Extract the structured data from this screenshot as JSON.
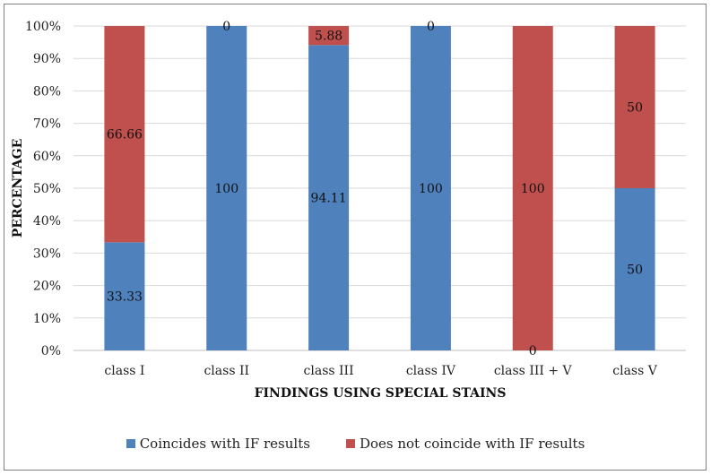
{
  "chart_data": {
    "type": "bar",
    "stacked": true,
    "normalized": true,
    "categories": [
      "class I",
      "class II",
      "class III",
      "class IV",
      "class III + V",
      "class V"
    ],
    "series": [
      {
        "name": "Coincides with IF results",
        "color": "#4f81bd",
        "values": [
          33.33,
          100,
          94.11,
          100,
          0,
          50
        ],
        "labels": [
          "33.33",
          "100",
          "94.11",
          "100",
          "0",
          "50"
        ]
      },
      {
        "name": "Does not coincide with IF results",
        "color": "#c0504d",
        "values": [
          66.66,
          0,
          5.88,
          0,
          100,
          50
        ],
        "labels": [
          "66.66",
          "0",
          "5.88",
          "0",
          "100",
          "50"
        ]
      }
    ],
    "xlabel": "FINDINGS USING SPECIAL STAINS",
    "ylabel": "PERCENTAGE",
    "ylim": [
      0,
      100
    ],
    "yticks": [
      0,
      10,
      20,
      30,
      40,
      50,
      60,
      70,
      80,
      90,
      100
    ],
    "ytick_labels": [
      "0%",
      "10%",
      "20%",
      "30%",
      "40%",
      "50%",
      "60%",
      "70%",
      "80%",
      "90%",
      "100%"
    ],
    "grid": true,
    "legend_position": "bottom"
  }
}
